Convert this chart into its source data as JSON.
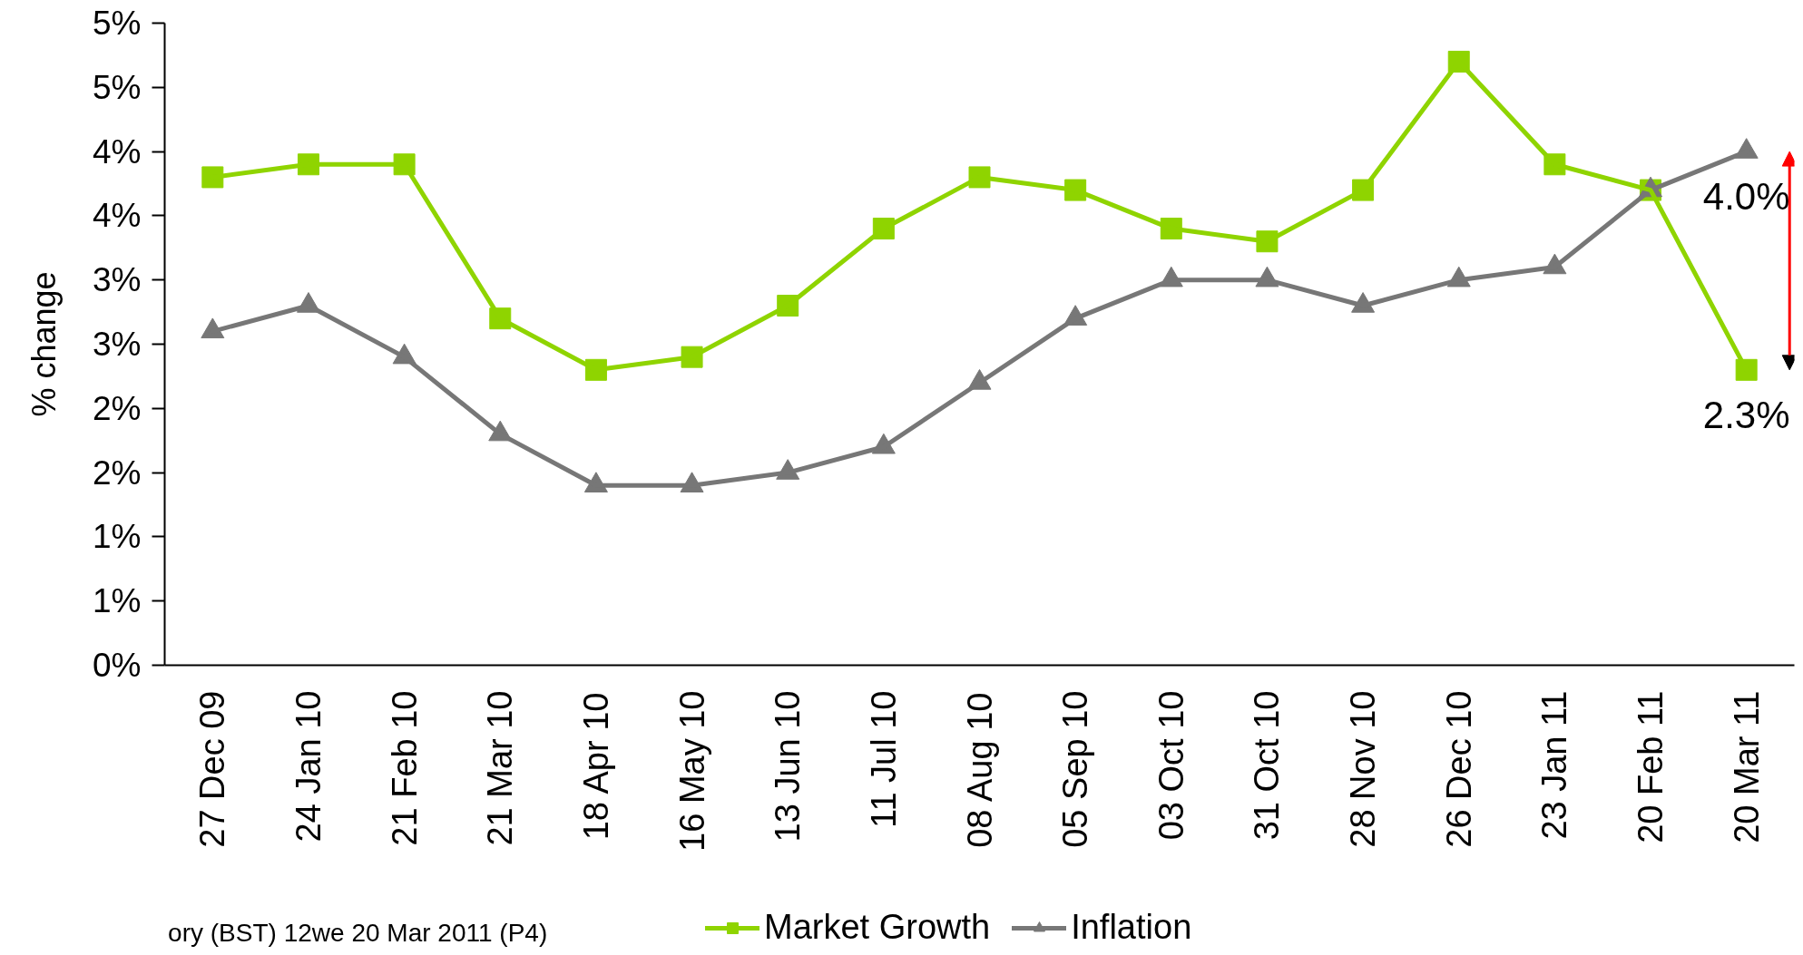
{
  "chart_data": {
    "type": "line",
    "ylabel": "% change",
    "categories": [
      "27 Dec 09",
      "24 Jan 10",
      "21 Feb 10",
      "21 Mar 10",
      "18 Apr 10",
      "16 May 10",
      "13 Jun 10",
      "11 Jul 10",
      "08 Aug 10",
      "05 Sep 10",
      "03 Oct 10",
      "31 Oct 10",
      "28 Nov 10",
      "26 Dec 10",
      "23 Jan 11",
      "20 Feb 11",
      "20 Mar 11"
    ],
    "ylim": [
      0,
      5
    ],
    "yticks": [
      {
        "value": 0,
        "label": "0%"
      },
      {
        "value": 0.5,
        "label": "1%"
      },
      {
        "value": 1,
        "label": "1%"
      },
      {
        "value": 1.5,
        "label": "2%"
      },
      {
        "value": 2,
        "label": "2%"
      },
      {
        "value": 2.5,
        "label": "3%"
      },
      {
        "value": 3,
        "label": "3%"
      },
      {
        "value": 3.5,
        "label": "4%"
      },
      {
        "value": 4,
        "label": "4%"
      },
      {
        "value": 4.5,
        "label": "5%"
      },
      {
        "value": 5,
        "label": "5%"
      }
    ],
    "series": [
      {
        "name": "Market Growth",
        "color": "#8fd400",
        "marker": "square",
        "values": [
          3.8,
          3.9,
          3.9,
          2.7,
          2.3,
          2.4,
          2.8,
          3.4,
          3.8,
          3.7,
          3.4,
          3.3,
          3.7,
          4.7,
          3.9,
          3.7,
          2.3
        ],
        "value_labels": [
          null,
          null,
          null,
          null,
          null,
          null,
          null,
          null,
          null,
          null,
          null,
          null,
          null,
          null,
          null,
          null,
          "2.3%"
        ]
      },
      {
        "name": "Inflation",
        "color": "#777777",
        "marker": "triangle",
        "values": [
          2.6,
          2.8,
          2.4,
          1.8,
          1.4,
          1.4,
          1.5,
          1.7,
          2.2,
          2.7,
          3.0,
          3.0,
          2.8,
          3.0,
          3.1,
          3.7,
          4.0
        ],
        "value_labels": [
          null,
          null,
          null,
          null,
          null,
          null,
          null,
          null,
          null,
          null,
          null,
          null,
          null,
          null,
          null,
          null,
          "4.0%"
        ]
      }
    ],
    "line_style": "solid",
    "legend": "bottom",
    "annotations": [
      "ory (BST) 12we 20 Mar 2011 (P4)"
    ]
  }
}
